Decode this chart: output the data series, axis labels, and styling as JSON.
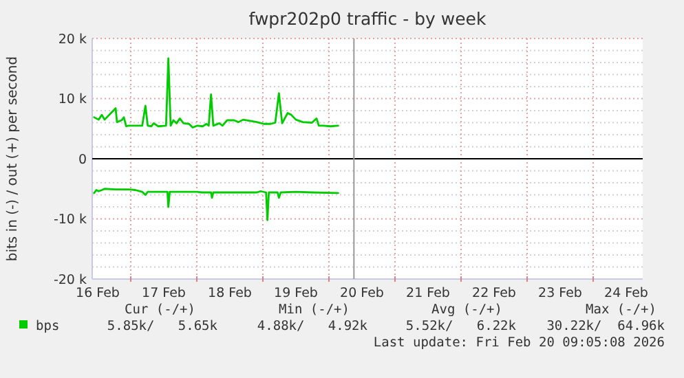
{
  "chart_data": {
    "type": "line",
    "title": "fwpr202p0 traffic - by week",
    "ylabel": "bits in (-) / out (+) per second",
    "xlim": [
      "2026-02-16T10:00",
      "2026-02-24T18:00"
    ],
    "xticks": [
      {
        "value": "2026-02-16T12:00",
        "label": "16 Feb"
      },
      {
        "value": "2026-02-17T00:00",
        "label": null
      },
      {
        "value": "2026-02-17T12:00",
        "label": "17 Feb"
      },
      {
        "value": "2026-02-18T00:00",
        "label": null
      },
      {
        "value": "2026-02-18T12:00",
        "label": "18 Feb"
      },
      {
        "value": "2026-02-19T00:00",
        "label": null
      },
      {
        "value": "2026-02-19T12:00",
        "label": "19 Feb"
      },
      {
        "value": "2026-02-20T00:00",
        "label": null
      },
      {
        "value": "2026-02-20T12:00",
        "label": "20 Feb"
      },
      {
        "value": "2026-02-21T00:00",
        "label": null
      },
      {
        "value": "2026-02-21T12:00",
        "label": "21 Feb"
      },
      {
        "value": "2026-02-22T00:00",
        "label": null
      },
      {
        "value": "2026-02-22T12:00",
        "label": "22 Feb"
      },
      {
        "value": "2026-02-23T00:00",
        "label": null
      },
      {
        "value": "2026-02-23T12:00",
        "label": "23 Feb"
      },
      {
        "value": "2026-02-24T00:00",
        "label": null
      },
      {
        "value": "2026-02-24T12:00",
        "label": "24 Feb"
      }
    ],
    "ylim": [
      -20,
      20
    ],
    "yticks": [
      {
        "value": -20,
        "label": "-20 k"
      },
      {
        "value": -18,
        "label": null
      },
      {
        "value": -16,
        "label": null
      },
      {
        "value": -14,
        "label": null
      },
      {
        "value": -12,
        "label": null
      },
      {
        "value": -10,
        "label": "-10 k"
      },
      {
        "value": -8,
        "label": null
      },
      {
        "value": -6,
        "label": null
      },
      {
        "value": -4,
        "label": null
      },
      {
        "value": -2,
        "label": null
      },
      {
        "value": 0,
        "label": "0"
      },
      {
        "value": 2,
        "label": null
      },
      {
        "value": 4,
        "label": null
      },
      {
        "value": 6,
        "label": null
      },
      {
        "value": 8,
        "label": null
      },
      {
        "value": 10,
        "label": "10 k"
      },
      {
        "value": 12,
        "label": null
      },
      {
        "value": 14,
        "label": null
      },
      {
        "value": 16,
        "label": null
      },
      {
        "value": 18,
        "label": null
      },
      {
        "value": 20,
        "label": "20 k"
      }
    ],
    "grid": true,
    "legend": "bottom",
    "series": [
      {
        "name": "bps",
        "color": "#00cc00",
        "x": [
          "2026-02-16T10:40",
          "2026-02-16T12:20",
          "2026-02-16T13:30",
          "2026-02-16T14:30",
          "2026-02-16T18:30",
          "2026-02-16T19:00",
          "2026-02-16T20:40",
          "2026-02-16T21:30",
          "2026-02-16T22:20",
          "2026-02-16T23:10",
          "2026-02-17T04:10",
          "2026-02-17T05:20",
          "2026-02-17T06:10",
          "2026-02-17T07:30",
          "2026-02-17T08:20",
          "2026-02-17T10:00",
          "2026-02-17T12:50",
          "2026-02-17T13:40",
          "2026-02-17T14:30",
          "2026-02-17T15:30",
          "2026-02-17T16:40",
          "2026-02-17T17:50",
          "2026-02-17T19:10",
          "2026-02-17T21:10",
          "2026-02-17T22:30",
          "2026-02-18T00:10",
          "2026-02-18T02:10",
          "2026-02-18T03:30",
          "2026-02-18T04:20",
          "2026-02-18T05:10",
          "2026-02-18T06:00",
          "2026-02-18T08:10",
          "2026-02-18T09:20",
          "2026-02-18T11:00",
          "2026-02-18T13:30",
          "2026-02-18T15:10",
          "2026-02-18T16:50",
          "2026-02-18T19:20",
          "2026-02-18T21:50",
          "2026-02-19T00:20",
          "2026-02-19T02:50",
          "2026-02-19T04:30",
          "2026-02-19T05:50",
          "2026-02-19T07:00",
          "2026-02-19T09:00",
          "2026-02-19T10:20",
          "2026-02-19T12:00",
          "2026-02-19T14:30",
          "2026-02-19T17:50",
          "2026-02-19T19:30",
          "2026-02-19T20:20",
          "2026-02-19T22:00",
          "2026-02-20T00:30",
          "2026-02-20T03:20"
        ],
        "values": [
          6.9,
          6.5,
          7.3,
          6.5,
          8.4,
          6.1,
          6.4,
          6.9,
          5.4,
          5.5,
          5.5,
          8.8,
          5.5,
          5.4,
          5.9,
          5.4,
          5.5,
          16.7,
          5.5,
          6.4,
          5.9,
          6.7,
          5.9,
          5.8,
          5.2,
          5.5,
          5.4,
          5.8,
          5.5,
          10.7,
          5.5,
          5.9,
          5.5,
          6.4,
          6.4,
          6.1,
          6.5,
          6.3,
          6.1,
          5.8,
          5.8,
          6.0,
          10.9,
          5.9,
          7.6,
          7.3,
          6.5,
          6.1,
          6.0,
          6.7,
          5.5,
          5.5,
          5.4,
          5.5
        ]
      },
      {
        "color": "#00cc00",
        "x": [
          "2026-02-16T10:40",
          "2026-02-16T11:30",
          "2026-02-16T12:20",
          "2026-02-16T13:30",
          "2026-02-16T14:30",
          "2026-02-16T18:30",
          "2026-02-16T23:10",
          "2026-02-17T01:40",
          "2026-02-17T04:10",
          "2026-02-17T05:20",
          "2026-02-17T06:10",
          "2026-02-17T13:20",
          "2026-02-17T13:40",
          "2026-02-17T14:10",
          "2026-02-18T00:10",
          "2026-02-18T01:50",
          "2026-02-18T05:10",
          "2026-02-18T05:30",
          "2026-02-18T06:00",
          "2026-02-18T21:50",
          "2026-02-18T23:10",
          "2026-02-19T01:10",
          "2026-02-19T01:40",
          "2026-02-19T02:10",
          "2026-02-19T05:20",
          "2026-02-19T05:50",
          "2026-02-19T06:30",
          "2026-02-19T12:00",
          "2026-02-19T17:50",
          "2026-02-20T03:20"
        ],
        "values": [
          -5.7,
          -5.2,
          -5.4,
          -5.2,
          -5.0,
          -5.1,
          -5.1,
          -5.2,
          -5.5,
          -6.0,
          -5.5,
          -5.5,
          -8.0,
          -5.5,
          -5.5,
          -5.6,
          -5.6,
          -6.5,
          -5.6,
          -5.6,
          -5.4,
          -5.6,
          -10.2,
          -5.6,
          -5.6,
          -6.5,
          -5.6,
          -5.5,
          -5.6,
          -5.7
        ]
      }
    ],
    "ref_lines": [
      {
        "axis": "y",
        "value": 0,
        "color": "#000000"
      },
      {
        "axis": "x",
        "value": "2026-02-20T09:05",
        "color": "#999999"
      }
    ],
    "annotations": [
      "Cur (-/+)",
      "Min (-/+)",
      "Avg (-/+)",
      "Max (-/+)",
      "5.85k/   5.65k",
      "4.88k/   4.92k",
      "5.52k/   6.22k",
      "30.22k/  64.96k",
      "Last update: Fri Feb 20 09:05:08 2026"
    ]
  }
}
